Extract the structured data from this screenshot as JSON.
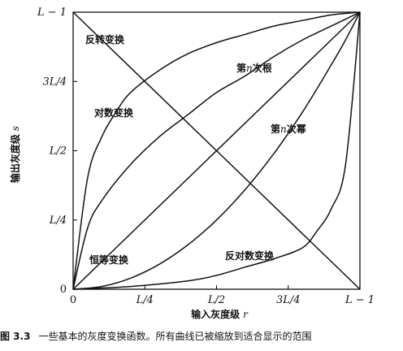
{
  "chart_data": {
    "type": "line",
    "xlabel": "输入灰度级",
    "xlabel_var": "r",
    "ylabel": "输出灰度级",
    "ylabel_var": "s",
    "x_ticks": [
      "0",
      "L/4",
      "L/2",
      "3L/4",
      "L − 1"
    ],
    "y_ticks": [
      "0",
      "L/4",
      "L/2",
      "3L/4",
      "L − 1"
    ],
    "xlim": [
      0,
      1
    ],
    "ylim": [
      0,
      1
    ],
    "grid": false,
    "legend": "none",
    "series": [
      {
        "name": "反转变换",
        "label_parts": [
          "反转变换"
        ],
        "x": [
          0,
          0.25,
          0.5,
          0.75,
          1
        ],
        "y": [
          1,
          0.75,
          0.5,
          0.25,
          0
        ]
      },
      {
        "name": "对数变换",
        "label_parts": [
          "对数变换"
        ],
        "x": [
          0,
          0.05,
          0.1,
          0.15,
          0.2,
          0.3,
          0.4,
          0.5,
          0.6,
          0.7,
          0.8,
          0.9,
          1
        ],
        "y": [
          0,
          0.4,
          0.55,
          0.64,
          0.71,
          0.79,
          0.85,
          0.89,
          0.92,
          0.95,
          0.97,
          0.99,
          1
        ]
      },
      {
        "name": "第n次根",
        "label_parts": [
          "第",
          "n",
          "次根"
        ],
        "x": [
          0,
          0.05,
          0.1,
          0.2,
          0.3,
          0.4,
          0.5,
          0.6,
          0.7,
          0.8,
          0.9,
          1
        ],
        "y": [
          0,
          0.22,
          0.32,
          0.45,
          0.55,
          0.63,
          0.71,
          0.77,
          0.84,
          0.9,
          0.95,
          1
        ]
      },
      {
        "name": "恒等变换",
        "label_parts": [
          "恒等变换"
        ],
        "x": [
          0,
          1
        ],
        "y": [
          0,
          1
        ]
      },
      {
        "name": "第n次幂",
        "label_parts": [
          "第",
          "n",
          "次幂"
        ],
        "x": [
          0,
          0.1,
          0.2,
          0.3,
          0.4,
          0.5,
          0.6,
          0.7,
          0.8,
          0.9,
          0.95,
          1
        ],
        "y": [
          0,
          0.01,
          0.04,
          0.09,
          0.16,
          0.25,
          0.36,
          0.49,
          0.64,
          0.81,
          0.9,
          1
        ]
      },
      {
        "name": "反对数变换",
        "label_parts": [
          "反对数变换"
        ],
        "x": [
          0,
          0.2,
          0.4,
          0.5,
          0.6,
          0.7,
          0.8,
          0.85,
          0.9,
          0.95,
          1
        ],
        "y": [
          0,
          0.01,
          0.03,
          0.05,
          0.08,
          0.11,
          0.15,
          0.21,
          0.29,
          0.45,
          1
        ]
      }
    ]
  },
  "caption": {
    "number": "图 3.3",
    "text": "一些基本的灰度变换函数。所有曲线已被缩放到适合显示的范围"
  }
}
